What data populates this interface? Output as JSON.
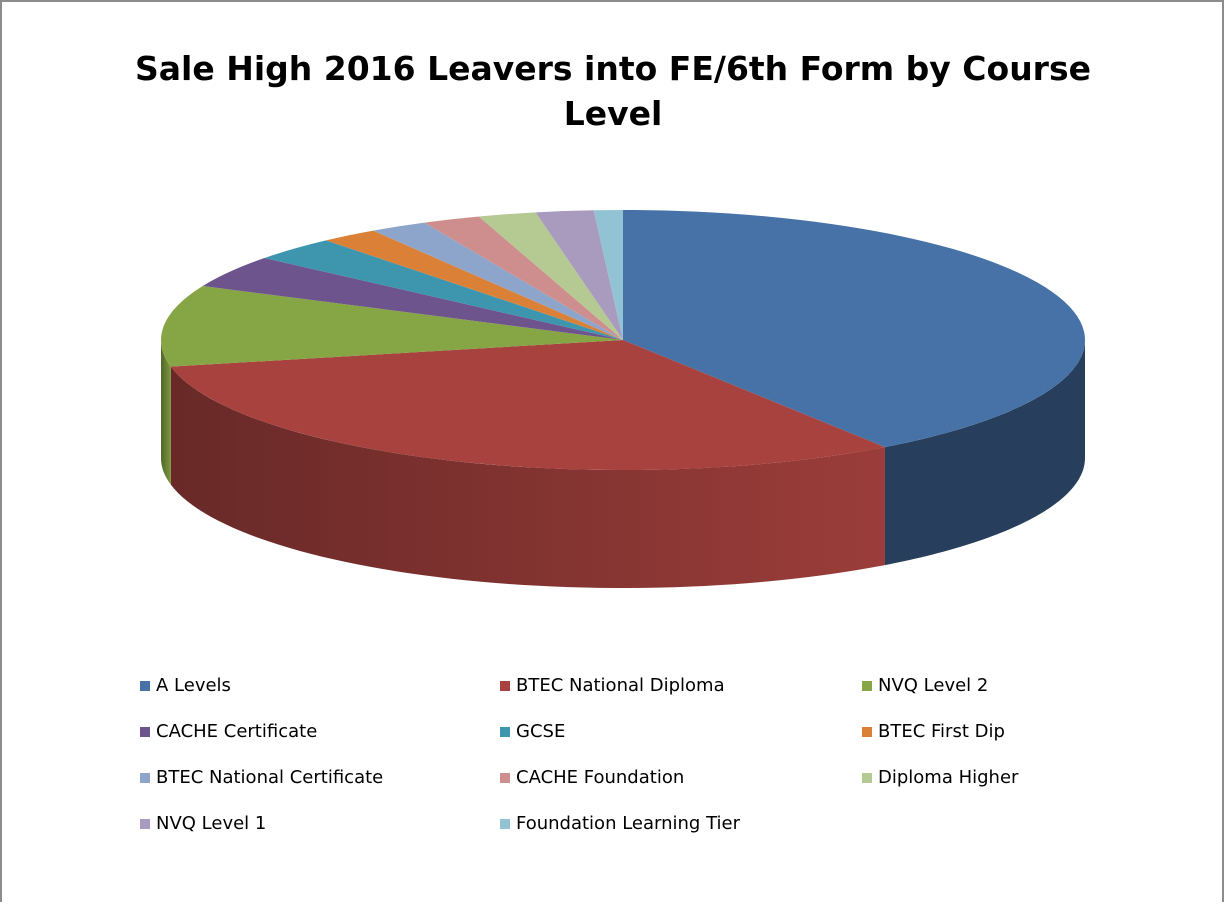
{
  "chart_data": {
    "type": "pie",
    "title": "Sale High 2016 Leavers into FE/6th Form by Course Level",
    "categories": [
      "A Levels",
      "BTEC National Diploma",
      "NVQ Level 2",
      "CACHE Certificate",
      "GCSE",
      "BTEC First Dip",
      "BTEC National Certificate",
      "CACHE Foundation",
      "Diploma Higher",
      "NVQ Level 1",
      "Foundation Learning Tier"
    ],
    "values": [
      40,
      31,
      10,
      4,
      3,
      2,
      2,
      2,
      2,
      2,
      1
    ],
    "colors": [
      "#4672a8",
      "#a8423f",
      "#86a544",
      "#6e548d",
      "#3d96ae",
      "#da8137",
      "#8ea5cb",
      "#ce8e8d",
      "#b5ca92",
      "#a99bbd",
      "#92c3d4"
    ],
    "legend": "bottom"
  }
}
